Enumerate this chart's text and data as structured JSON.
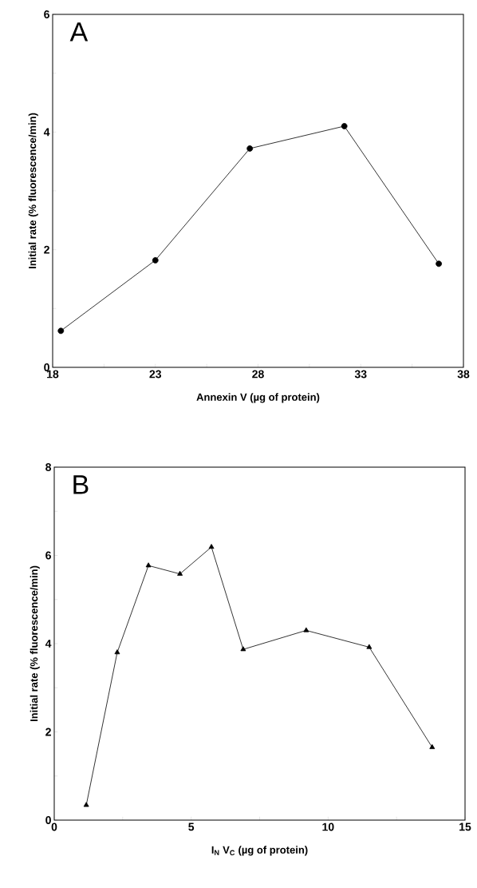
{
  "chart_data": [
    {
      "type": "line",
      "xlabel": "Annexin V (µg of protein)",
      "ylabel": "Initial rate (% fluorescence/min)",
      "annotations": [
        "A"
      ],
      "marker": "circle",
      "line_style": "solid",
      "x": [
        18.4,
        23,
        27.6,
        32.2,
        36.8
      ],
      "series": [
        {
          "color": "#000000",
          "values": [
            0.62,
            1.82,
            3.72,
            4.1,
            1.76
          ]
        }
      ],
      "xlim": [
        18,
        38
      ],
      "xticks": [
        18,
        {
          "value": 20.5,
          "label": null
        },
        23,
        {
          "value": 25.5,
          "label": null
        },
        28,
        {
          "value": 30.5,
          "label": null
        },
        33,
        {
          "value": 35.5,
          "label": null
        },
        38
      ],
      "ylim": [
        0,
        6
      ],
      "yticks": [
        0,
        {
          "value": 1,
          "label": null
        },
        2,
        {
          "value": 3,
          "label": null
        },
        4,
        {
          "value": 5,
          "label": null
        },
        6
      ]
    },
    {
      "type": "line",
      "xlabel": "I$_{N}$ V$_{C}$ (µg of protein)",
      "ylabel": "Initial rate (% fluorescence/min)",
      "annotations": [
        "B"
      ],
      "marker": "triangle",
      "line_style": "solid",
      "x": [
        1.17,
        2.3,
        3.44,
        4.59,
        5.74,
        6.9,
        9.2,
        11.5,
        13.8
      ],
      "series": [
        {
          "color": "#000000",
          "values": [
            0.34,
            3.8,
            5.77,
            5.58,
            6.19,
            3.87,
            4.3,
            3.92,
            1.65
          ]
        }
      ],
      "xlim": [
        0,
        15
      ],
      "xticks": [
        0,
        {
          "value": 2.5,
          "label": null
        },
        5,
        {
          "value": 7.5,
          "label": null
        },
        10,
        {
          "value": 12.5,
          "label": null
        },
        15
      ],
      "ylim": [
        0,
        8
      ],
      "yticks": [
        0,
        {
          "value": 1,
          "label": null
        },
        2,
        {
          "value": 3,
          "label": null
        },
        4,
        {
          "value": 5,
          "label": null
        },
        6,
        {
          "value": 7,
          "label": null
        },
        8
      ]
    }
  ]
}
